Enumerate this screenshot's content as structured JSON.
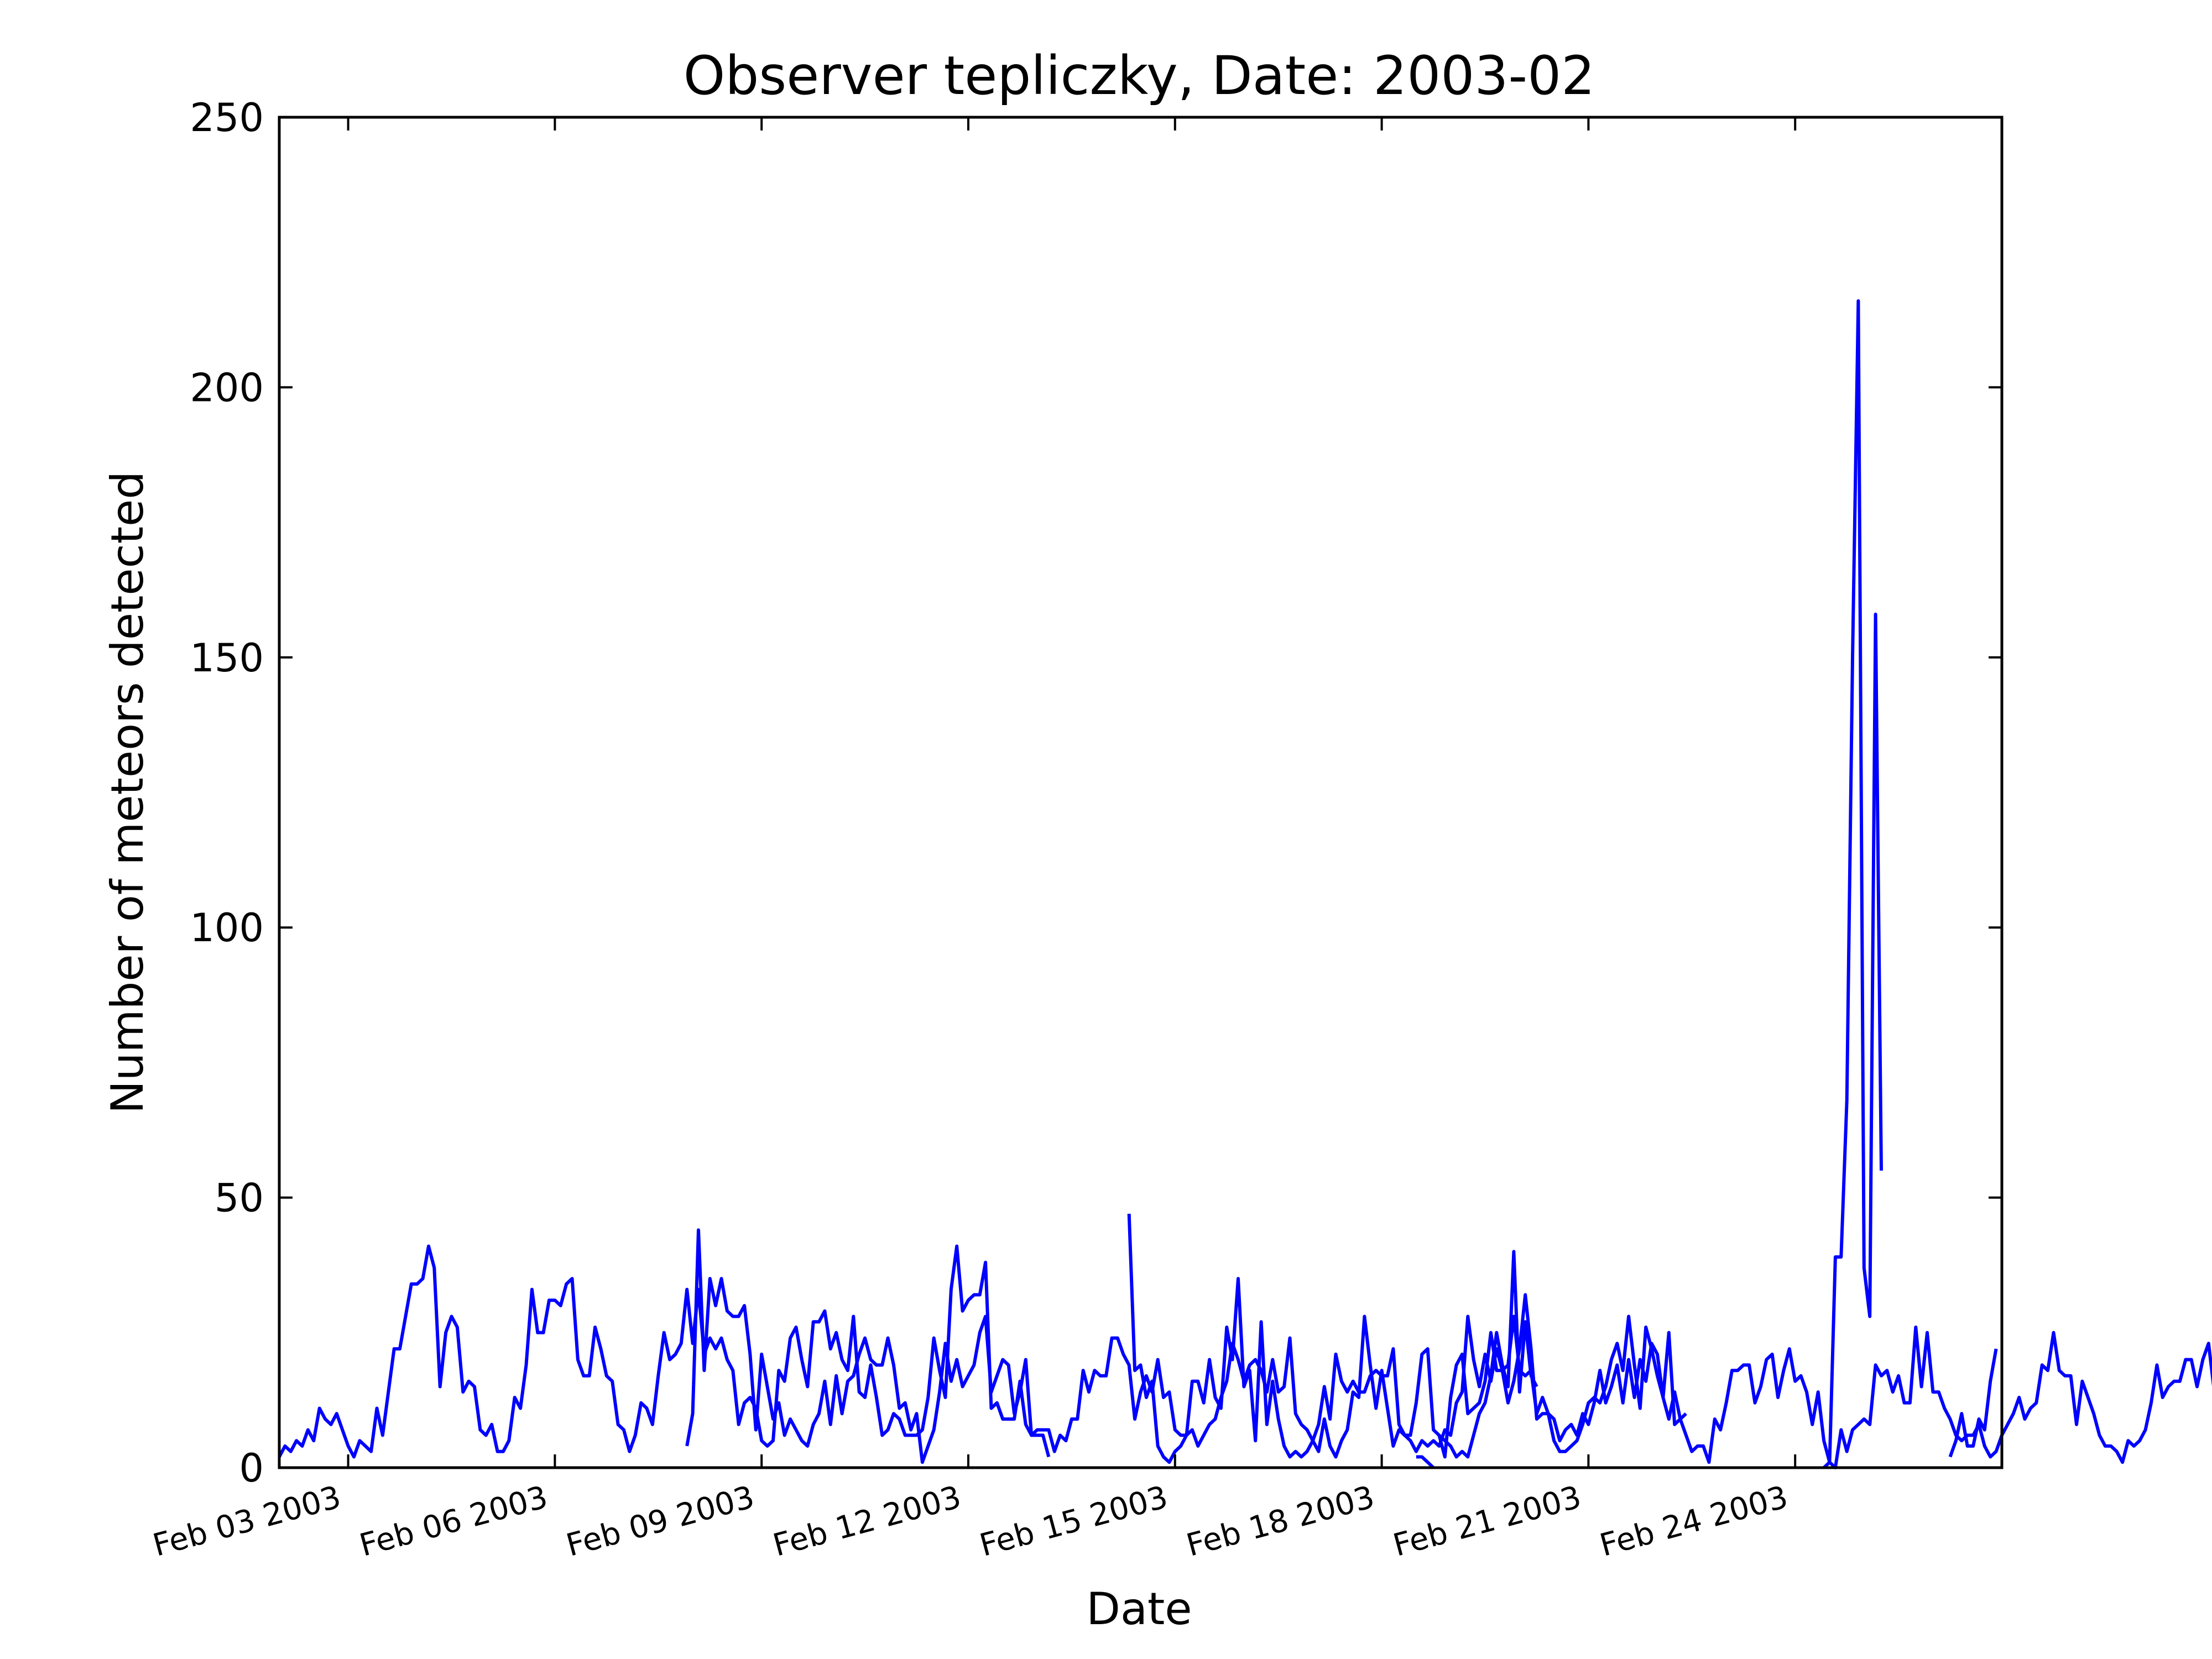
{
  "chart_data": {
    "type": "line",
    "title": "Observer tepliczky, Date: 2003-02",
    "xlabel": "Date",
    "ylabel": "Number of meteors detected",
    "xlim": [
      "2003-02-02 00:00",
      "2003-02-27 00:00"
    ],
    "ylim": [
      0,
      250
    ],
    "yticks": [
      0,
      50,
      100,
      150,
      200,
      250
    ],
    "xticks": [
      {
        "value": "2003-02-03",
        "label": "Feb 03 2003"
      },
      {
        "value": "2003-02-06",
        "label": "Feb 06 2003"
      },
      {
        "value": "2003-02-09",
        "label": "Feb 09 2003"
      },
      {
        "value": "2003-02-12",
        "label": "Feb 12 2003"
      },
      {
        "value": "2003-02-15",
        "label": "Feb 15 2003"
      },
      {
        "value": "2003-02-18",
        "label": "Feb 18 2003"
      },
      {
        "value": "2003-02-21",
        "label": "Feb 21 2003"
      },
      {
        "value": "2003-02-24",
        "label": "Feb 24 2003"
      }
    ],
    "grid": false,
    "line_color": "#0000ff",
    "series": [
      {
        "segments": [
          {
            "start": "2003-02-02 00:00",
            "step_hours": 2,
            "values": [
              2,
              4,
              3,
              5,
              4,
              7,
              5,
              11,
              9,
              8,
              10,
              7,
              4,
              2,
              5,
              4,
              3,
              11,
              6,
              14,
              22,
              22,
              28,
              34,
              34,
              35,
              41,
              37,
              15,
              25,
              28,
              26,
              14,
              16,
              15,
              7,
              6,
              8,
              3,
              3,
              5,
              13,
              11,
              19,
              33,
              25,
              25,
              31,
              31,
              30,
              34,
              35,
              20,
              17,
              17,
              26,
              22,
              17,
              16,
              8,
              7,
              3,
              6,
              12,
              11,
              8,
              17,
              25,
              20,
              21,
              23,
              33,
              23,
              33,
              21,
              24,
              22,
              24,
              20,
              18,
              8,
              12,
              13,
              11,
              5,
              4,
              5,
              18,
              16,
              24,
              26,
              20,
              15,
              27,
              27,
              29,
              22,
              25,
              20,
              18,
              28,
              14,
              13,
              19,
              13,
              6,
              7,
              10,
              9,
              6,
              6,
              6,
              7,
              13,
              24,
              18,
              13,
              33,
              41,
              29,
              31,
              32,
              32,
              38,
              11,
              12,
              9,
              9,
              9,
              16,
              8,
              6,
              6,
              6,
              2
            ]
          },
          {
            "start": "2003-02-07 22:00",
            "step_hours": 2,
            "values": [
              4,
              10,
              44,
              18,
              35,
              30,
              35,
              29,
              28,
              28,
              30,
              21,
              7,
              21,
              15,
              9,
              12,
              6,
              9,
              7,
              5,
              4,
              8,
              10,
              16,
              8,
              17,
              10,
              16,
              17,
              21,
              24,
              20,
              19,
              19,
              24,
              19,
              11,
              12,
              7,
              10,
              1,
              4,
              7,
              14,
              23,
              16,
              20,
              15,
              17,
              19,
              25,
              28,
              14,
              17,
              20,
              19,
              10,
              14,
              20,
              6,
              7,
              7,
              7,
              3,
              6,
              5,
              9,
              9,
              18,
              14,
              18,
              17,
              17,
              24,
              24,
              21,
              19,
              9,
              14,
              17,
              14,
              20,
              13,
              14,
              7,
              6,
              6,
              7,
              4,
              6,
              8,
              9,
              13,
              16,
              23,
              20,
              16,
              19,
              20,
              18,
              14,
              20,
              14,
              15,
              24,
              10,
              8,
              7,
              5,
              3,
              9,
              4,
              2,
              5,
              7,
              14,
              13,
              28,
              19,
              11,
              18,
              11,
              4,
              7,
              6,
              6,
              12,
              21,
              22,
              7,
              6,
              5,
              4,
              2,
              3,
              2,
              6,
              10,
              12,
              17,
              25,
              19,
              15,
              40,
              14,
              27,
              17,
              15
            ]
          },
          {
            "start": "2003-02-14 08:00",
            "step_hours": 2,
            "values": [
              47,
              18,
              19,
              13,
              16,
              4,
              2,
              1,
              3,
              4,
              6,
              16,
              16,
              12,
              20,
              13,
              11,
              26,
              20,
              35,
              15,
              18,
              5,
              27,
              8,
              16,
              9,
              4,
              2,
              3,
              2,
              3,
              5,
              8,
              15,
              9,
              21,
              16,
              14,
              16,
              14,
              14,
              17,
              18,
              17,
              17,
              22,
              8,
              6,
              5,
              3,
              5,
              4,
              5,
              4,
              7,
              6,
              12,
              14,
              28,
              20,
              15,
              21,
              16,
              22,
              18,
              19,
              28,
              18,
              17,
              18,
              10,
              13,
              10,
              9,
              5,
              7,
              8,
              6,
              10,
              8,
              12,
              18,
              12,
              15,
              19,
              12,
              20,
              13,
              20,
              16,
              23,
              21,
              13,
              25,
              8,
              9,
              10
            ]
          },
          {
            "start": "2003-02-18 12:00",
            "step_hours": 2,
            "values": [
              2,
              2,
              1,
              0
            ]
          },
          {
            "start": "2003-02-18 20:00",
            "step_hours": 2,
            "values": [
              6,
              2,
              13,
              19,
              21,
              10,
              11,
              12,
              16,
              25,
              18,
              18,
              12,
              16,
              22,
              32,
              22,
              9,
              10,
              10,
              5,
              3,
              3,
              4,
              5,
              8,
              12,
              13,
              12,
              15,
              20,
              23,
              18,
              28,
              19,
              11,
              26,
              22,
              17,
              13,
              9,
              14,
              9,
              6,
              3,
              4,
              4,
              1,
              9,
              7,
              12,
              18,
              18,
              19,
              19,
              12,
              15,
              20,
              21,
              13,
              18,
              22,
              16,
              17,
              14,
              8,
              14,
              5,
              1,
              0,
              7,
              3,
              7,
              8,
              9,
              8,
              19,
              17,
              18,
              14,
              17,
              12,
              12,
              26,
              15,
              25,
              14,
              14,
              11,
              9,
              6,
              5,
              6,
              6,
              8,
              4,
              2,
              3,
              6,
              8,
              10,
              13,
              9,
              11,
              12,
              19,
              18,
              25,
              18,
              17,
              17,
              8,
              16,
              13,
              10,
              6,
              4,
              4,
              3,
              1,
              5,
              4,
              5,
              7,
              12,
              19,
              13,
              15,
              16,
              16,
              20,
              20,
              15,
              20,
              23,
              14,
              22,
              20,
              13,
              9,
              8,
              13,
              6,
              4,
              1,
              0
            ]
          },
          {
            "start": "2003-02-24 10:00",
            "step_hours": 2,
            "values": [
              0,
              1,
              39,
              39,
              68,
              150,
              216,
              37,
              28,
              158,
              55
            ]
          },
          {
            "start": "2003-02-26 06:00",
            "step_hours": 2,
            "values": [
              2,
              5,
              10,
              4,
              4,
              9,
              7,
              16,
              22
            ]
          }
        ]
      }
    ]
  }
}
